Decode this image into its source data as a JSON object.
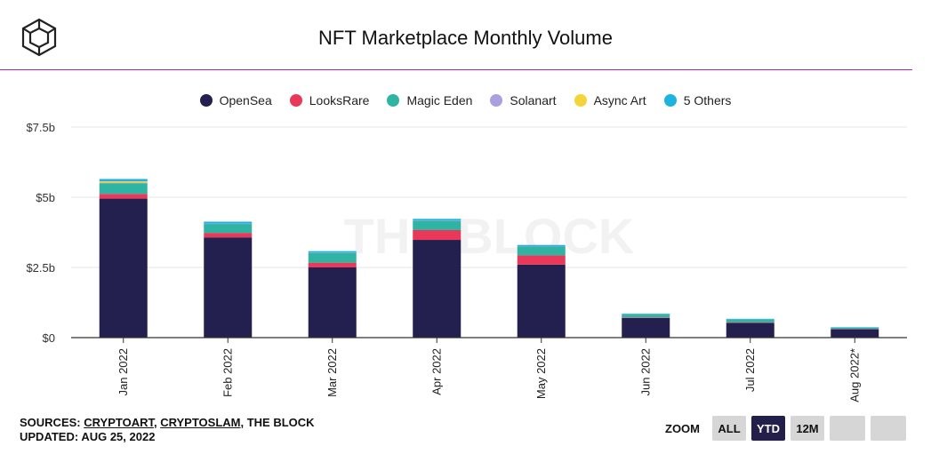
{
  "header": {
    "title": "NFT Marketplace Monthly Volume",
    "watermark": "THE BLOCK"
  },
  "colors": {
    "title_rule": "#9b2fa8",
    "grid": "#e6e6e6",
    "axis": "#333333"
  },
  "chart_data": {
    "type": "bar",
    "stacked": true,
    "title": "NFT Marketplace Monthly Volume",
    "xlabel": "",
    "ylabel": "",
    "ylim": [
      0,
      7.5
    ],
    "yticks": [
      {
        "value": 0,
        "label": "$0"
      },
      {
        "value": 2.5,
        "label": "$2.5b"
      },
      {
        "value": 5,
        "label": "$5b"
      },
      {
        "value": 7.5,
        "label": "$7.5b"
      }
    ],
    "categories": [
      "Jan 2022",
      "Feb 2022",
      "Mar 2022",
      "Apr 2022",
      "May 2022",
      "Jun 2022",
      "Jul 2022",
      "Aug 2022*"
    ],
    "series": [
      {
        "name": "OpenSea",
        "color": "#231f4f",
        "values": [
          4.95,
          3.57,
          2.5,
          3.48,
          2.6,
          0.7,
          0.52,
          0.3
        ]
      },
      {
        "name": "LooksRare",
        "color": "#e8395a",
        "values": [
          0.17,
          0.16,
          0.17,
          0.35,
          0.33,
          0.02,
          0.02,
          0.01
        ]
      },
      {
        "name": "Magic Eden",
        "color": "#2fb4a4",
        "values": [
          0.38,
          0.32,
          0.35,
          0.33,
          0.32,
          0.1,
          0.1,
          0.04
        ]
      },
      {
        "name": "Solanart",
        "color": "#ab9fe0",
        "values": [
          0.02,
          0.01,
          0.01,
          0.01,
          0.01,
          0.0,
          0.0,
          0.0
        ]
      },
      {
        "name": "Async Art",
        "color": "#f4d43b",
        "values": [
          0.05,
          0.0,
          0.0,
          0.0,
          0.0,
          0.0,
          0.0,
          0.0
        ]
      },
      {
        "name": "5 Others",
        "color": "#1db3e0",
        "values": [
          0.08,
          0.07,
          0.05,
          0.06,
          0.04,
          0.03,
          0.03,
          0.02
        ]
      }
    ],
    "legend_position": "top-center",
    "grid": true
  },
  "footer": {
    "sources_prefix": "SOURCES: ",
    "source1": "CRYPTOART",
    "sep1": ", ",
    "source2": "CRYPTOSLAM",
    "sources_suffix": ", THE BLOCK",
    "updated": "UPDATED: AUG 25, 2022"
  },
  "zoom": {
    "label": "ZOOM",
    "buttons": [
      "ALL",
      "YTD",
      "12M",
      "",
      ""
    ],
    "active": "YTD"
  }
}
